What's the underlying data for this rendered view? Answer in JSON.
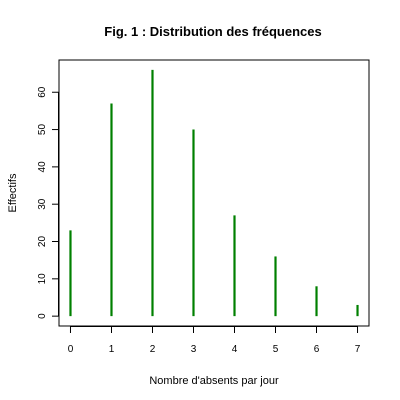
{
  "chart_data": {
    "type": "bar",
    "style": "vertical spikes (type h)",
    "title": "Fig. 1 : Distribution des fréquences",
    "xlabel": "Nombre d'absents par jour",
    "ylabel": "Effectifs",
    "categories": [
      0,
      1,
      2,
      3,
      4,
      5,
      6,
      7
    ],
    "values": [
      23,
      57,
      66,
      50,
      27,
      16,
      8,
      3
    ],
    "xlim": [
      -0.28,
      7.28
    ],
    "ylim": [
      -2.64,
      68.64
    ],
    "x_ticks": [
      "0",
      "1",
      "2",
      "3",
      "4",
      "5",
      "6",
      "7"
    ],
    "y_ticks": [
      "0",
      "10",
      "20",
      "30",
      "40",
      "50",
      "60"
    ],
    "bar_color": "#008000",
    "grid": false,
    "legend": "none"
  }
}
